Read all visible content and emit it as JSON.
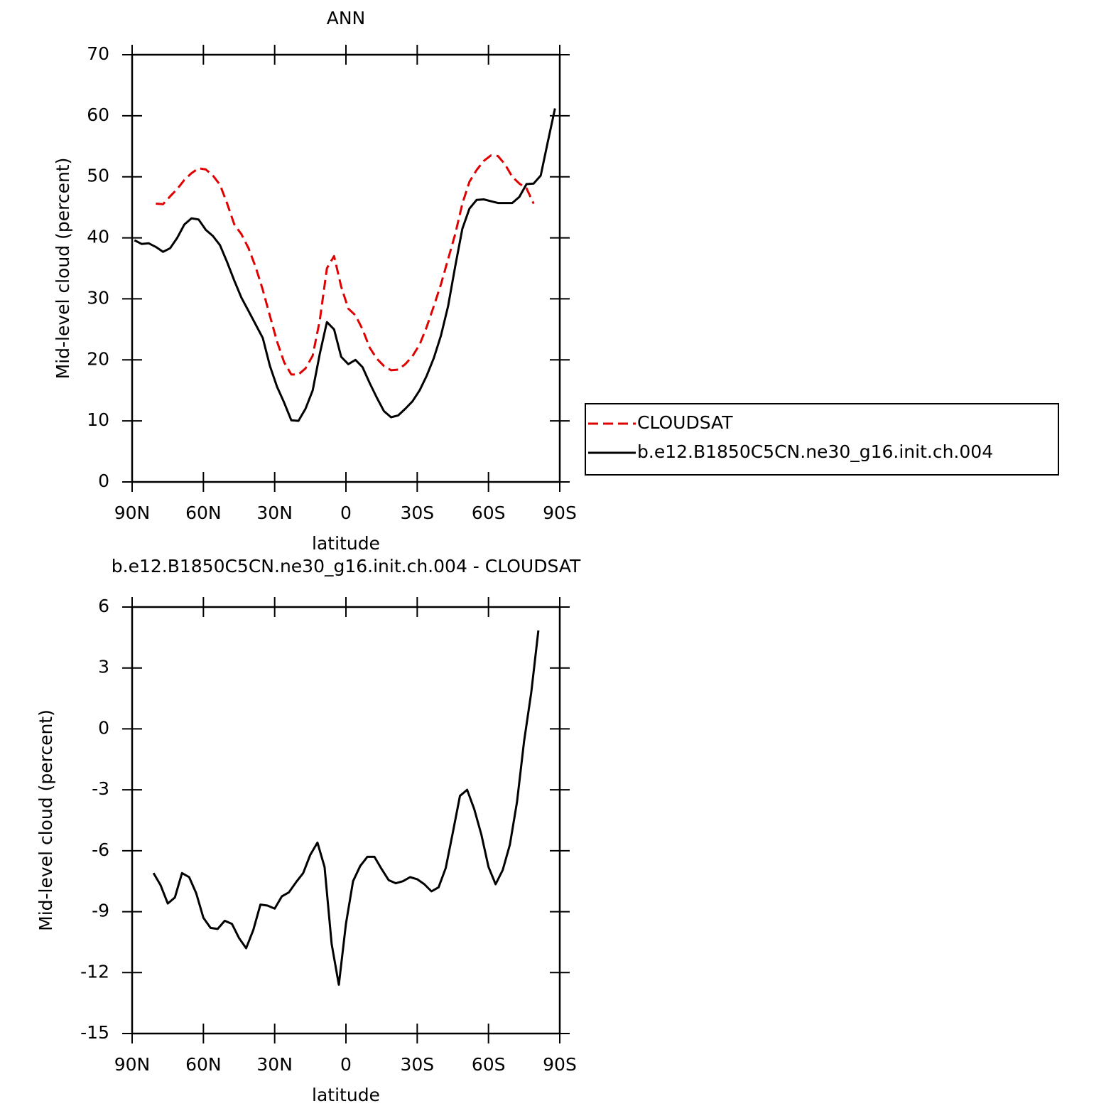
{
  "chart_data": [
    {
      "type": "line",
      "title": "ANN",
      "xlabel": "latitude",
      "ylabel": "Mid-level cloud (percent)",
      "x": [
        89,
        86,
        83,
        80,
        77,
        74,
        71,
        68,
        65,
        62,
        59,
        56,
        53,
        50,
        47,
        44,
        41,
        38,
        35,
        32,
        29,
        26,
        23,
        20,
        17,
        14,
        11,
        8,
        5,
        2,
        -1,
        -4,
        -7,
        -10,
        -13,
        -16,
        -19,
        -22,
        -25,
        -28,
        -31,
        -34,
        -37,
        -40,
        -43,
        -46,
        -49,
        -52,
        -55,
        -58,
        -61,
        -64,
        -67,
        -70,
        -73,
        -76,
        -79,
        -82,
        -85,
        -88
      ],
      "series": [
        {
          "name": "CLOUDSAT",
          "color": "#e00000",
          "dashed": true,
          "values": [
            null,
            null,
            null,
            45.6,
            45.5,
            46.8,
            48.0,
            49.5,
            50.6,
            51.4,
            51.2,
            50.2,
            48.7,
            45.6,
            42.2,
            40.6,
            38.3,
            35.2,
            31.5,
            27.2,
            23.0,
            19.6,
            17.6,
            17.6,
            18.6,
            20.7,
            26.5,
            35.0,
            37.0,
            32.0,
            28.4,
            27.3,
            25.0,
            22.0,
            20.2,
            19.0,
            18.3,
            18.4,
            19.3,
            20.6,
            22.5,
            25.4,
            28.8,
            32.4,
            36.5,
            40.6,
            45.6,
            49.2,
            51.1,
            52.6,
            53.5,
            53.4,
            52.0,
            50.0,
            48.9,
            48.1,
            45.6,
            null,
            null,
            null
          ]
        },
        {
          "name": "b.e12.B1850C5CN.ne30_g16.init.ch.004",
          "color": "#000000",
          "dashed": false,
          "values": [
            39.6,
            39.0,
            39.1,
            38.5,
            37.7,
            38.3,
            40.0,
            42.2,
            43.2,
            43.0,
            41.3,
            40.3,
            38.8,
            36.0,
            33.0,
            30.2,
            28.0,
            25.8,
            23.6,
            19.0,
            15.6,
            13.0,
            10.1,
            10.0,
            12.0,
            15.0,
            21.0,
            26.2,
            25.0,
            20.5,
            19.3,
            20.0,
            18.8,
            16.2,
            13.8,
            11.6,
            10.6,
            10.9,
            12.0,
            13.2,
            15.0,
            17.4,
            20.3,
            24.0,
            28.8,
            35.3,
            41.5,
            44.8,
            46.2,
            46.3,
            46.0,
            45.7,
            45.7,
            45.7,
            46.7,
            48.8,
            48.9,
            50.2,
            55.8,
            61.2
          ]
        }
      ],
      "xlim": [
        90,
        -90
      ],
      "xticks": [
        {
          "value": 90,
          "label": "90N"
        },
        {
          "value": 60,
          "label": "60N"
        },
        {
          "value": 30,
          "label": "30N"
        },
        0,
        {
          "value": -30,
          "label": "30S"
        },
        {
          "value": -60,
          "label": "60S"
        },
        {
          "value": -90,
          "label": "90S"
        }
      ],
      "ylim": [
        0,
        70
      ],
      "yticks": [
        0,
        10,
        20,
        30,
        40,
        50,
        60,
        70
      ],
      "legend": "right"
    },
    {
      "type": "line",
      "title": "b.e12.B1850C5CN.ne30_g16.init.ch.004 - CLOUDSAT",
      "xlabel": "latitude",
      "ylabel": "Mid-level cloud (percent)",
      "x": [
        81,
        78,
        75,
        72,
        69,
        66,
        63,
        60,
        57,
        54,
        51,
        48,
        45,
        42,
        39,
        36,
        33,
        30,
        27,
        24,
        21,
        18,
        15,
        12,
        9,
        6,
        3,
        0,
        -3,
        -6,
        -9,
        -12,
        -15,
        -18,
        -21,
        -24,
        -27,
        -30,
        -33,
        -36,
        -39,
        -42,
        -45,
        -48,
        -51,
        -54,
        -57,
        -60,
        -63,
        -66,
        -69,
        -72,
        -75,
        -78,
        -81
      ],
      "series": [
        {
          "color": "#000000",
          "dashed": false,
          "values": [
            -7.1,
            -7.7,
            -8.6,
            -8.3,
            -7.1,
            -7.3,
            -8.1,
            -9.3,
            -9.8,
            -9.85,
            -9.45,
            -9.6,
            -10.3,
            -10.8,
            -9.9,
            -8.65,
            -8.7,
            -8.85,
            -8.25,
            -8.05,
            -7.55,
            -7.1,
            -6.2,
            -5.6,
            -6.8,
            -10.6,
            -12.6,
            -9.6,
            -7.5,
            -6.75,
            -6.3,
            -6.3,
            -6.9,
            -7.45,
            -7.6,
            -7.5,
            -7.3,
            -7.4,
            -7.65,
            -8.0,
            -7.8,
            -6.85,
            -5.1,
            -3.3,
            -3.0,
            -3.95,
            -5.2,
            -6.8,
            -7.65,
            -6.95,
            -5.7,
            -3.6,
            -0.6,
            1.8,
            4.85
          ]
        }
      ],
      "xlim": [
        90,
        -90
      ],
      "xticks": [
        {
          "value": 90,
          "label": "90N"
        },
        {
          "value": 60,
          "label": "60N"
        },
        {
          "value": 30,
          "label": "30N"
        },
        0,
        {
          "value": -30,
          "label": "30S"
        },
        {
          "value": -60,
          "label": "60S"
        },
        {
          "value": -90,
          "label": "90S"
        }
      ],
      "ylim": [
        -15,
        6
      ],
      "yticks": [
        -15,
        -12,
        -9,
        -6,
        -3,
        0,
        3,
        6
      ]
    }
  ]
}
